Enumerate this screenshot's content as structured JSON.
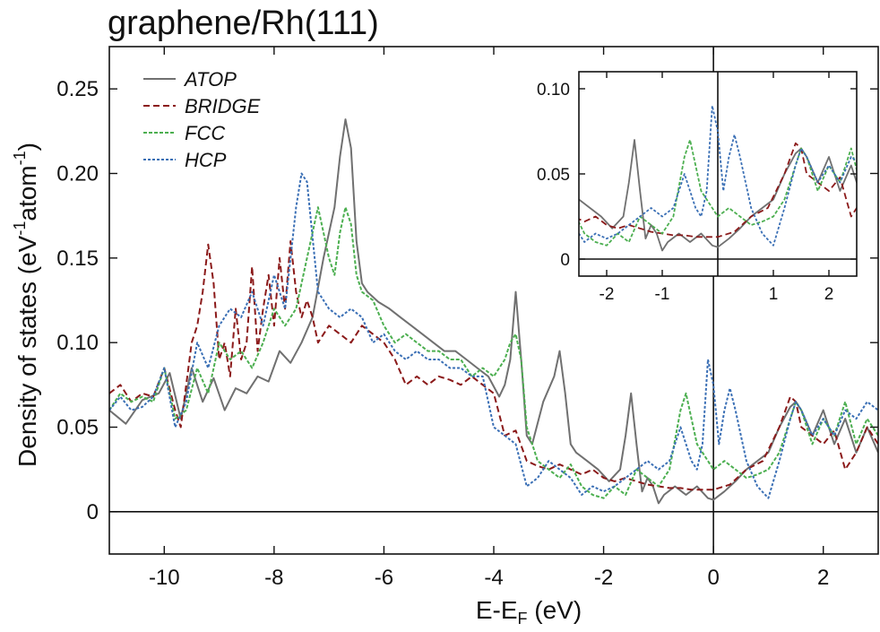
{
  "chart_data": {
    "type": "line",
    "title": "graphene/Rh(111)",
    "xlabel": {
      "main": "E-E",
      "sub": "F",
      "unit": " (eV)"
    },
    "ylabel": {
      "a": "Density of states (eV",
      "sup1": "-1",
      "b": "atom",
      "sup2": "-1",
      "c": ")"
    },
    "xlim": [
      -11,
      3
    ],
    "ylim": [
      -0.025,
      0.275
    ],
    "xticks": [
      {
        "v": -10,
        "label": "-10"
      },
      {
        "v": -8,
        "label": "-8"
      },
      {
        "v": -6,
        "label": "-6"
      },
      {
        "v": -4,
        "label": "-4"
      },
      {
        "v": -2,
        "label": "-2"
      },
      {
        "v": 0,
        "label": "0"
      },
      {
        "v": 2,
        "label": "2"
      }
    ],
    "yticks": [
      {
        "v": 0,
        "label": "0"
      },
      {
        "v": 0.05,
        "label": "0.05"
      },
      {
        "v": 0.1,
        "label": "0.10"
      },
      {
        "v": 0.15,
        "label": "0.15"
      },
      {
        "v": 0.2,
        "label": "0.20"
      },
      {
        "v": 0.25,
        "label": "0.25"
      }
    ],
    "legend_position": "top-left",
    "series": [
      {
        "name": "ATOP",
        "color": "#707070",
        "dash": "solid",
        "x": [
          -11,
          -10.7,
          -10.4,
          -10.1,
          -9.9,
          -9.7,
          -9.5,
          -9.3,
          -9.1,
          -8.9,
          -8.7,
          -8.5,
          -8.3,
          -8.1,
          -7.9,
          -7.7,
          -7.5,
          -7.3,
          -7.1,
          -6.9,
          -6.8,
          -6.7,
          -6.6,
          -6.5,
          -6.4,
          -6.3,
          -6.1,
          -5.9,
          -5.7,
          -5.5,
          -5.3,
          -5.1,
          -4.9,
          -4.7,
          -4.5,
          -4.3,
          -4.1,
          -3.9,
          -3.8,
          -3.7,
          -3.6,
          -3.5,
          -3.4,
          -3.3,
          -3.1,
          -2.9,
          -2.8,
          -2.7,
          -2.6,
          -2.5,
          -2.3,
          -2.1,
          -1.9,
          -1.7,
          -1.6,
          -1.5,
          -1.4,
          -1.3,
          -1.2,
          -1.1,
          -1.0,
          -0.9,
          -0.7,
          -0.5,
          -0.3,
          -0.1,
          0,
          0.2,
          0.4,
          0.6,
          0.8,
          1.0,
          1.2,
          1.4,
          1.5,
          1.6,
          1.8,
          2.0,
          2.2,
          2.4,
          2.6,
          2.8,
          3.0
        ],
        "y": [
          0.06,
          0.052,
          0.066,
          0.07,
          0.082,
          0.055,
          0.085,
          0.065,
          0.079,
          0.06,
          0.073,
          0.07,
          0.08,
          0.077,
          0.095,
          0.088,
          0.1,
          0.115,
          0.15,
          0.18,
          0.21,
          0.232,
          0.215,
          0.16,
          0.135,
          0.13,
          0.124,
          0.12,
          0.115,
          0.11,
          0.105,
          0.1,
          0.095,
          0.095,
          0.09,
          0.085,
          0.08,
          0.068,
          0.075,
          0.09,
          0.13,
          0.09,
          0.045,
          0.04,
          0.065,
          0.08,
          0.095,
          0.07,
          0.04,
          0.035,
          0.03,
          0.025,
          0.018,
          0.025,
          0.045,
          0.07,
          0.04,
          0.012,
          0.02,
          0.015,
          0.005,
          0.01,
          0.015,
          0.01,
          0.015,
          0.008,
          0.007,
          0.012,
          0.018,
          0.025,
          0.03,
          0.035,
          0.05,
          0.062,
          0.065,
          0.06,
          0.045,
          0.06,
          0.04,
          0.055,
          0.035,
          0.05,
          0.035
        ]
      },
      {
        "name": "BRIDGE",
        "color": "#8b1a1a",
        "dash": "dashed",
        "x": [
          -11,
          -10.8,
          -10.6,
          -10.4,
          -10.2,
          -10.0,
          -9.8,
          -9.7,
          -9.5,
          -9.4,
          -9.3,
          -9.2,
          -9.1,
          -9.0,
          -8.9,
          -8.8,
          -8.7,
          -8.6,
          -8.5,
          -8.4,
          -8.3,
          -8.2,
          -8.1,
          -8.0,
          -7.9,
          -7.8,
          -7.7,
          -7.6,
          -7.5,
          -7.4,
          -7.3,
          -7.2,
          -7.0,
          -6.8,
          -6.6,
          -6.4,
          -6.2,
          -6.0,
          -5.8,
          -5.6,
          -5.4,
          -5.2,
          -5.0,
          -4.8,
          -4.6,
          -4.4,
          -4.2,
          -4.0,
          -3.8,
          -3.6,
          -3.4,
          -3.2,
          -3.0,
          -2.8,
          -2.6,
          -2.4,
          -2.2,
          -2.0,
          -1.8,
          -1.6,
          -1.4,
          -1.2,
          -1.0,
          -0.8,
          -0.6,
          -0.4,
          -0.2,
          0,
          0.3,
          0.6,
          0.9,
          1.2,
          1.4,
          1.5,
          1.6,
          1.8,
          2.0,
          2.2,
          2.4,
          2.6,
          2.8,
          3.0
        ],
        "y": [
          0.07,
          0.075,
          0.065,
          0.07,
          0.068,
          0.085,
          0.06,
          0.05,
          0.1,
          0.11,
          0.13,
          0.158,
          0.135,
          0.09,
          0.1,
          0.08,
          0.12,
          0.09,
          0.1,
          0.145,
          0.095,
          0.12,
          0.14,
          0.11,
          0.15,
          0.12,
          0.16,
          0.13,
          0.115,
          0.125,
          0.115,
          0.1,
          0.11,
          0.105,
          0.1,
          0.11,
          0.105,
          0.1,
          0.09,
          0.075,
          0.08,
          0.075,
          0.08,
          0.078,
          0.075,
          0.08,
          0.075,
          0.07,
          0.045,
          0.048,
          0.03,
          0.027,
          0.025,
          0.028,
          0.025,
          0.022,
          0.025,
          0.02,
          0.018,
          0.02,
          0.018,
          0.016,
          0.015,
          0.014,
          0.014,
          0.013,
          0.013,
          0.013,
          0.016,
          0.025,
          0.03,
          0.05,
          0.068,
          0.065,
          0.05,
          0.045,
          0.04,
          0.048,
          0.025,
          0.035,
          0.05,
          0.04
        ]
      },
      {
        "name": "FCC",
        "color": "#4caf50",
        "dash": "densely-dashed",
        "x": [
          -11,
          -10.8,
          -10.6,
          -10.4,
          -10.2,
          -10.0,
          -9.8,
          -9.6,
          -9.4,
          -9.2,
          -9.0,
          -8.8,
          -8.6,
          -8.4,
          -8.2,
          -8.0,
          -7.8,
          -7.6,
          -7.4,
          -7.2,
          -7.0,
          -6.9,
          -6.8,
          -6.7,
          -6.6,
          -6.5,
          -6.4,
          -6.2,
          -6.0,
          -5.8,
          -5.6,
          -5.4,
          -5.2,
          -5.0,
          -4.8,
          -4.6,
          -4.4,
          -4.2,
          -4.0,
          -3.8,
          -3.7,
          -3.6,
          -3.5,
          -3.4,
          -3.2,
          -3.0,
          -2.8,
          -2.6,
          -2.4,
          -2.2,
          -2.0,
          -1.8,
          -1.6,
          -1.4,
          -1.2,
          -1.0,
          -0.8,
          -0.6,
          -0.5,
          -0.4,
          -0.3,
          -0.1,
          0,
          0.2,
          0.4,
          0.6,
          0.8,
          1.0,
          1.2,
          1.4,
          1.5,
          1.6,
          1.8,
          2.0,
          2.2,
          2.4,
          2.6,
          2.8,
          3.0
        ],
        "y": [
          0.06,
          0.07,
          0.065,
          0.068,
          0.065,
          0.085,
          0.055,
          0.06,
          0.085,
          0.07,
          0.1,
          0.09,
          0.095,
          0.085,
          0.1,
          0.12,
          0.11,
          0.12,
          0.15,
          0.18,
          0.15,
          0.14,
          0.165,
          0.18,
          0.17,
          0.14,
          0.13,
          0.125,
          0.11,
          0.1,
          0.105,
          0.1,
          0.095,
          0.095,
          0.09,
          0.09,
          0.08,
          0.085,
          0.08,
          0.09,
          0.1,
          0.105,
          0.09,
          0.05,
          0.03,
          0.025,
          0.02,
          0.028,
          0.015,
          0.01,
          0.008,
          0.015,
          0.01,
          0.025,
          0.02,
          0.015,
          0.025,
          0.06,
          0.07,
          0.055,
          0.04,
          0.03,
          0.025,
          0.03,
          0.025,
          0.02,
          0.022,
          0.025,
          0.035,
          0.055,
          0.065,
          0.06,
          0.04,
          0.055,
          0.045,
          0.065,
          0.04,
          0.055,
          0.045
        ]
      },
      {
        "name": "HCP",
        "color": "#3a6fb5",
        "dash": "dotted",
        "x": [
          -11,
          -10.8,
          -10.6,
          -10.4,
          -10.2,
          -10.0,
          -9.8,
          -9.6,
          -9.4,
          -9.2,
          -9.0,
          -8.8,
          -8.6,
          -8.4,
          -8.2,
          -8.0,
          -7.8,
          -7.6,
          -7.5,
          -7.4,
          -7.2,
          -7.0,
          -6.8,
          -6.6,
          -6.4,
          -6.2,
          -6.0,
          -5.8,
          -5.6,
          -5.4,
          -5.2,
          -5.0,
          -4.8,
          -4.6,
          -4.4,
          -4.2,
          -4.0,
          -3.8,
          -3.6,
          -3.4,
          -3.2,
          -3.0,
          -2.8,
          -2.6,
          -2.4,
          -2.2,
          -2.0,
          -1.8,
          -1.6,
          -1.4,
          -1.2,
          -1.0,
          -0.8,
          -0.6,
          -0.5,
          -0.4,
          -0.3,
          -0.2,
          -0.1,
          0,
          0.1,
          0.2,
          0.3,
          0.4,
          0.6,
          0.8,
          1.0,
          1.2,
          1.4,
          1.5,
          1.6,
          1.8,
          2.0,
          2.2,
          2.4,
          2.6,
          2.8,
          3.0
        ],
        "y": [
          0.06,
          0.068,
          0.06,
          0.062,
          0.068,
          0.085,
          0.05,
          0.065,
          0.1,
          0.085,
          0.11,
          0.12,
          0.115,
          0.13,
          0.11,
          0.14,
          0.12,
          0.18,
          0.2,
          0.195,
          0.13,
          0.12,
          0.115,
          0.12,
          0.115,
          0.1,
          0.105,
          0.095,
          0.09,
          0.095,
          0.09,
          0.09,
          0.085,
          0.085,
          0.08,
          0.08,
          0.05,
          0.045,
          0.04,
          0.015,
          0.02,
          0.03,
          0.025,
          0.02,
          0.01,
          0.015,
          0.012,
          0.015,
          0.02,
          0.025,
          0.03,
          0.025,
          0.03,
          0.05,
          0.04,
          0.03,
          0.025,
          0.04,
          0.09,
          0.075,
          0.04,
          0.06,
          0.073,
          0.06,
          0.03,
          0.015,
          0.008,
          0.03,
          0.055,
          0.065,
          0.06,
          0.045,
          0.055,
          0.045,
          0.06,
          0.055,
          0.065,
          0.06
        ]
      }
    ],
    "inset": {
      "xlim": [
        -2.5,
        2.5
      ],
      "ylim": [
        -0.01,
        0.11
      ],
      "xticks": [
        {
          "v": -2,
          "label": "-2"
        },
        {
          "v": -1,
          "label": "-1"
        },
        {
          "v": 1,
          "label": "1"
        },
        {
          "v": 2,
          "label": "2"
        }
      ],
      "yticks": [
        {
          "v": 0,
          "label": "0"
        },
        {
          "v": 0.05,
          "label": "0.05"
        },
        {
          "v": 0.1,
          "label": "0.10"
        }
      ]
    }
  }
}
